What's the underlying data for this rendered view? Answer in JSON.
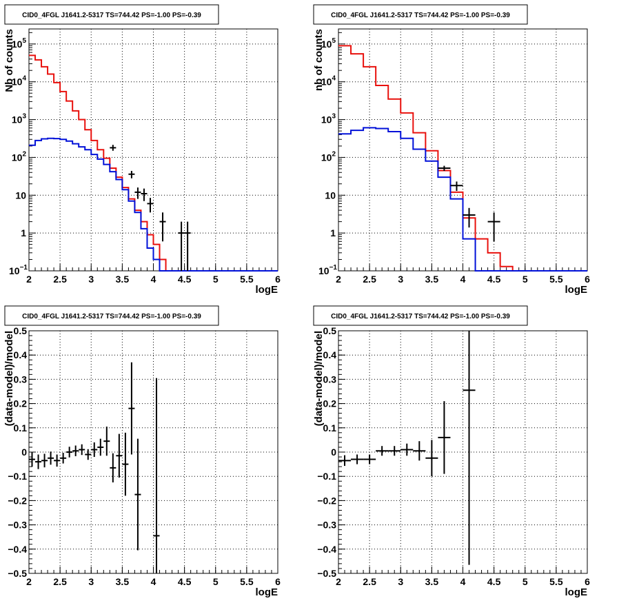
{
  "chart_data": [
    {
      "type": "step",
      "title": "CID0_4FGL J1641.2-5317 TS=744.42 PS=-1.00 PS=-0.39",
      "xlabel": "logE",
      "ylabel": "Nb of counts",
      "xlim": [
        2,
        6
      ],
      "ylim": [
        0.1,
        250000
      ],
      "yscale": "log",
      "grid": true,
      "x_ticks": [
        "2",
        "2.5",
        "3",
        "3.5",
        "4",
        "4.5",
        "5",
        "5.5",
        "6"
      ],
      "y_ticks": [
        {
          "v": 0.1,
          "label": "10",
          "exp": "−1"
        },
        {
          "v": 1,
          "label": "1",
          "exp": ""
        },
        {
          "v": 10,
          "label": "10",
          "exp": ""
        },
        {
          "v": 100,
          "label": "10",
          "exp": "2"
        },
        {
          "v": 1000,
          "label": "10",
          "exp": "3"
        },
        {
          "v": 10000,
          "label": "10",
          "exp": "4"
        },
        {
          "v": 100000,
          "label": "10",
          "exp": "5"
        }
      ],
      "bin_edges": [
        2.0,
        2.1,
        2.2,
        2.3,
        2.4,
        2.5,
        2.6,
        2.7,
        2.8,
        2.9,
        3.0,
        3.1,
        3.2,
        3.3,
        3.4,
        3.5,
        3.6,
        3.7,
        3.8,
        3.9,
        4.0,
        4.1,
        4.2,
        4.3,
        4.4,
        4.5,
        4.6,
        4.7,
        4.8,
        4.9,
        5.0,
        5.1,
        5.2,
        5.3,
        5.4,
        5.5,
        5.6,
        5.7,
        5.8,
        5.9,
        6.0
      ],
      "series": [
        {
          "color": "#e8100c",
          "values": [
            50000,
            38000,
            25000,
            16000,
            9500,
            5500,
            3100,
            1700,
            1000,
            540,
            280,
            160,
            95,
            52,
            30,
            16,
            8,
            4,
            2,
            0.9,
            0.5,
            0.2,
            0.1,
            0.1,
            0.1,
            0.1,
            0.1,
            0.1,
            0.1,
            0.1,
            0.1,
            0.1,
            0.1,
            0.1,
            0.1,
            0.1,
            0.1,
            0.1,
            0.1,
            0.1
          ]
        },
        {
          "color": "#0010d8",
          "values": [
            210,
            280,
            310,
            320,
            315,
            300,
            270,
            230,
            190,
            160,
            120,
            90,
            65,
            42,
            26,
            14,
            7,
            3.5,
            1.3,
            0.4,
            0.2,
            0.1,
            0.1,
            0.1,
            0.1,
            0.1,
            0.1,
            0.1,
            0.1,
            0.1,
            0.1,
            0.1,
            0.1,
            0.1,
            0.1,
            0.1,
            0.1,
            0.1,
            0.1,
            0.1
          ]
        }
      ],
      "data_points": [
        {
          "x": 3.35,
          "y": 180,
          "ylo": 150,
          "yhi": 215
        },
        {
          "x": 3.65,
          "y": 36,
          "ylo": 28,
          "yhi": 44
        },
        {
          "x": 3.75,
          "y": 12,
          "ylo": 8,
          "yhi": 16
        },
        {
          "x": 3.85,
          "y": 11,
          "ylo": 7,
          "yhi": 15
        },
        {
          "x": 3.95,
          "y": 6,
          "ylo": 3.5,
          "yhi": 8.5
        },
        {
          "x": 4.15,
          "y": 2,
          "ylo": 0.6,
          "yhi": 3.5
        },
        {
          "x": 4.45,
          "y": 1,
          "ylo": 0.1,
          "yhi": 2
        },
        {
          "x": 4.55,
          "y": 1,
          "ylo": 0.1,
          "yhi": 2
        }
      ]
    },
    {
      "type": "step",
      "title": "CID0_4FGL J1641.2-5317 TS=744.42 PS=-1.00 PS=-0.39",
      "xlabel": "logE",
      "ylabel": "nb of counts",
      "xlim": [
        2,
        6
      ],
      "ylim": [
        0.1,
        250000
      ],
      "yscale": "log",
      "grid": true,
      "x_ticks": [
        "2",
        "2.5",
        "3",
        "3.5",
        "4",
        "4.5",
        "5",
        "5.5",
        "6"
      ],
      "y_ticks": [
        {
          "v": 0.1,
          "label": "10",
          "exp": "−1"
        },
        {
          "v": 1,
          "label": "1",
          "exp": ""
        },
        {
          "v": 10,
          "label": "10",
          "exp": ""
        },
        {
          "v": 100,
          "label": "10",
          "exp": "2"
        },
        {
          "v": 1000,
          "label": "10",
          "exp": "3"
        },
        {
          "v": 10000,
          "label": "10",
          "exp": "4"
        },
        {
          "v": 100000,
          "label": "10",
          "exp": "5"
        }
      ],
      "bin_edges": [
        2.0,
        2.2,
        2.4,
        2.6,
        2.8,
        3.0,
        3.2,
        3.4,
        3.6,
        3.8,
        4.0,
        4.2,
        4.4,
        4.6,
        4.8,
        5.0,
        5.2,
        5.4,
        5.6,
        5.8,
        6.0
      ],
      "series": [
        {
          "color": "#e8100c",
          "values": [
            90000,
            55000,
            25000,
            8000,
            3500,
            1500,
            450,
            150,
            45,
            12,
            2.5,
            0.7,
            0.3,
            0.13,
            0.1,
            0.1,
            0.1,
            0.1,
            0.1,
            0.1
          ]
        },
        {
          "color": "#0010d8",
          "values": [
            420,
            520,
            610,
            580,
            480,
            320,
            165,
            80,
            30,
            8,
            0.7,
            0.1,
            0.1,
            0.1,
            0.1,
            0.1,
            0.1,
            0.1,
            0.1,
            0.1
          ]
        }
      ],
      "data_points": [
        {
          "x": 3.7,
          "y": 52,
          "ylo": 44,
          "yhi": 60
        },
        {
          "x": 3.9,
          "y": 18,
          "ylo": 13,
          "yhi": 23
        },
        {
          "x": 4.1,
          "y": 3,
          "ylo": 1.4,
          "yhi": 4.6
        },
        {
          "x": 4.5,
          "y": 2,
          "ylo": 0.6,
          "yhi": 3.5
        }
      ]
    },
    {
      "type": "scatter",
      "title": "CID0_4FGL J1641.2-5317 TS=744.42 PS=-1.00 PS=-0.39",
      "xlabel": "logE",
      "ylabel": "(data-model)/model",
      "xlim": [
        2,
        6
      ],
      "ylim": [
        -0.5,
        0.5
      ],
      "grid": true,
      "x_ticks": [
        "2",
        "2.5",
        "3",
        "3.5",
        "4",
        "4.5",
        "5",
        "5.5",
        "6"
      ],
      "y_ticks": [
        "-0.5",
        "-0.4",
        "-0.3",
        "-0.2",
        "-0.1",
        "0",
        "0.1",
        "0.2",
        "0.3",
        "0.4",
        "0.5"
      ],
      "xerr": 0.05,
      "points": [
        {
          "x": 2.05,
          "y": -0.03,
          "err": 0.03
        },
        {
          "x": 2.15,
          "y": -0.04,
          "err": 0.03
        },
        {
          "x": 2.25,
          "y": -0.035,
          "err": 0.028
        },
        {
          "x": 2.35,
          "y": -0.025,
          "err": 0.027
        },
        {
          "x": 2.45,
          "y": -0.035,
          "err": 0.025
        },
        {
          "x": 2.55,
          "y": -0.025,
          "err": 0.022
        },
        {
          "x": 2.65,
          "y": 0.0,
          "err": 0.022
        },
        {
          "x": 2.75,
          "y": 0.005,
          "err": 0.022
        },
        {
          "x": 2.85,
          "y": 0.01,
          "err": 0.022
        },
        {
          "x": 2.95,
          "y": -0.01,
          "err": 0.022
        },
        {
          "x": 3.05,
          "y": 0.01,
          "err": 0.03
        },
        {
          "x": 3.15,
          "y": 0.02,
          "err": 0.035
        },
        {
          "x": 3.25,
          "y": 0.045,
          "err": 0.06
        },
        {
          "x": 3.35,
          "y": -0.065,
          "err": 0.06
        },
        {
          "x": 3.45,
          "y": -0.015,
          "err": 0.09
        },
        {
          "x": 3.55,
          "y": -0.05,
          "err": 0.13
        },
        {
          "x": 3.65,
          "y": 0.18,
          "err": 0.19
        },
        {
          "x": 3.75,
          "y": -0.175,
          "err": 0.23
        },
        {
          "x": 4.05,
          "y": -0.345,
          "err": 0.65
        }
      ]
    },
    {
      "type": "scatter",
      "title": "CID0_4FGL J1641.2-5317 TS=744.42 PS=-1.00 PS=-0.39",
      "xlabel": "logE",
      "ylabel": "(data-model)/model",
      "xlim": [
        2,
        6
      ],
      "ylim": [
        -0.5,
        0.5
      ],
      "grid": true,
      "x_ticks": [
        "2",
        "2.5",
        "3",
        "3.5",
        "4",
        "4.5",
        "5",
        "5.5",
        "6"
      ],
      "y_ticks": [
        "-0.5",
        "-0.4",
        "-0.3",
        "-0.2",
        "-0.1",
        "0",
        "0.1",
        "0.2",
        "0.3",
        "0.4",
        "0.5"
      ],
      "xerr": 0.1,
      "points": [
        {
          "x": 2.1,
          "y": -0.035,
          "err": 0.022
        },
        {
          "x": 2.3,
          "y": -0.03,
          "err": 0.02
        },
        {
          "x": 2.5,
          "y": -0.03,
          "err": 0.02
        },
        {
          "x": 2.7,
          "y": 0.005,
          "err": 0.02
        },
        {
          "x": 2.9,
          "y": 0.005,
          "err": 0.02
        },
        {
          "x": 3.1,
          "y": 0.01,
          "err": 0.025
        },
        {
          "x": 3.3,
          "y": 0.005,
          "err": 0.04
        },
        {
          "x": 3.5,
          "y": -0.025,
          "err": 0.075
        },
        {
          "x": 3.7,
          "y": 0.06,
          "err": 0.15
        },
        {
          "x": 4.1,
          "y": 0.255,
          "err": 0.72
        }
      ]
    }
  ]
}
